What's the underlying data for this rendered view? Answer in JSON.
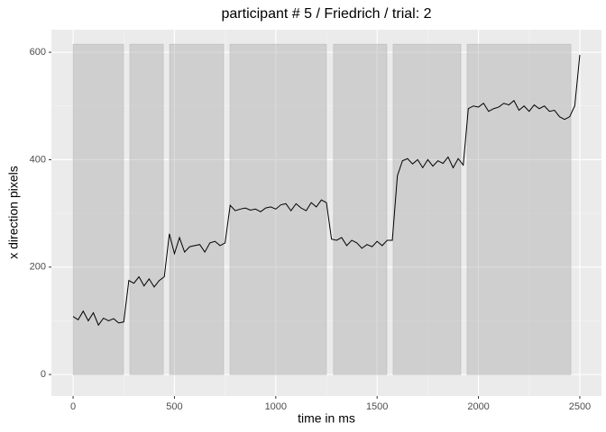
{
  "chart_data": {
    "type": "line",
    "title": "participant # 5  /  Friedrich / trial: 2",
    "x_label": "time in ms",
    "y_label": "x direction pixels",
    "x": [
      0,
      25,
      50,
      75,
      100,
      125,
      150,
      175,
      200,
      225,
      250,
      275,
      300,
      325,
      350,
      375,
      400,
      425,
      450,
      475,
      500,
      525,
      550,
      575,
      600,
      625,
      650,
      675,
      700,
      725,
      750,
      775,
      800,
      825,
      850,
      875,
      900,
      925,
      950,
      975,
      1000,
      1025,
      1050,
      1075,
      1100,
      1125,
      1150,
      1175,
      1200,
      1225,
      1250,
      1275,
      1300,
      1325,
      1350,
      1375,
      1400,
      1425,
      1450,
      1475,
      1500,
      1525,
      1550,
      1575,
      1600,
      1625,
      1650,
      1675,
      1700,
      1725,
      1750,
      1775,
      1800,
      1825,
      1850,
      1875,
      1900,
      1925,
      1950,
      1975,
      2000,
      2025,
      2050,
      2075,
      2100,
      2125,
      2150,
      2175,
      2200,
      2225,
      2250,
      2275,
      2300,
      2325,
      2350,
      2375,
      2400,
      2425,
      2450,
      2475,
      2500
    ],
    "values": [
      108,
      102,
      118,
      100,
      115,
      92,
      105,
      100,
      104,
      96,
      98,
      175,
      170,
      182,
      165,
      178,
      163,
      175,
      182,
      262,
      225,
      255,
      228,
      238,
      240,
      242,
      228,
      245,
      248,
      240,
      245,
      315,
      305,
      308,
      310,
      306,
      308,
      303,
      310,
      312,
      308,
      316,
      318,
      305,
      318,
      310,
      305,
      320,
      312,
      325,
      320,
      252,
      250,
      255,
      240,
      250,
      245,
      235,
      242,
      238,
      248,
      240,
      250,
      250,
      370,
      398,
      402,
      392,
      400,
      385,
      400,
      388,
      398,
      393,
      405,
      385,
      402,
      390,
      495,
      500,
      498,
      505,
      490,
      495,
      498,
      505,
      502,
      510,
      492,
      500,
      490,
      502,
      495,
      500,
      490,
      492,
      480,
      475,
      480,
      500,
      595
    ],
    "color": "#000000",
    "shaded_periods": [
      {
        "start": 0,
        "end": 249
      },
      {
        "start": 280,
        "end": 445
      },
      {
        "start": 476,
        "end": 743
      },
      {
        "start": 774,
        "end": 1250
      },
      {
        "start": 1285,
        "end": 1548
      },
      {
        "start": 1579,
        "end": 1913
      },
      {
        "start": 1944,
        "end": 2456
      }
    ],
    "shade_bottom": 0,
    "shade_top": 615,
    "xlim": [
      -107,
      2607
    ],
    "xticks": [
      0,
      500,
      1000,
      1500,
      2000,
      2500
    ],
    "ylim": [
      -40,
      642
    ],
    "yticks": [
      0,
      200,
      400,
      600
    ],
    "grid": true
  }
}
